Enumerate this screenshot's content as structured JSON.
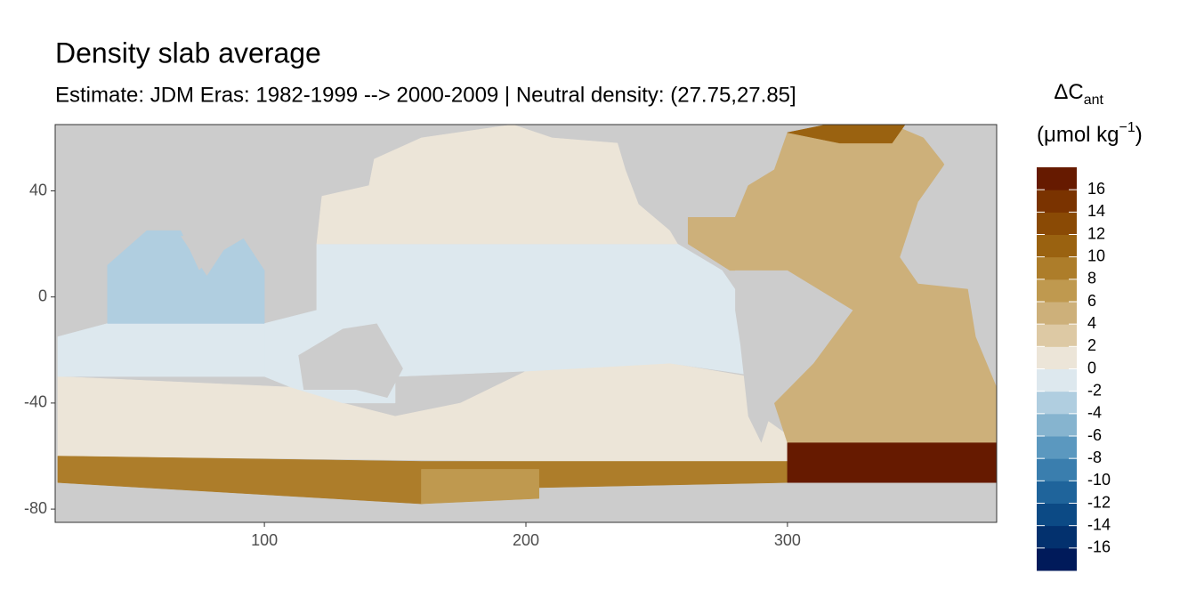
{
  "chart_data": {
    "type": "map",
    "title": "Density slab average",
    "subtitle": "Estimate: JDM Eras: 1982-1999 --> 2000-2009 | Neutral density: (27.75,27.85]",
    "xlim": [
      20,
      380
    ],
    "xticks": [
      100,
      200,
      300
    ],
    "ylim": [
      -85,
      65
    ],
    "yticks": [
      40,
      0,
      -40,
      -80
    ],
    "land_color": "#cccccc",
    "legend": {
      "title": {
        "main": "ΔC",
        "sub": "ant"
      },
      "unit": {
        "open": "(μmol kg",
        "sup": "−1",
        "close": ")"
      },
      "lim": [
        -18,
        18
      ],
      "breaks": [
        -16,
        -14,
        -12,
        -10,
        -8,
        -6,
        -4,
        -2,
        0,
        2,
        4,
        6,
        8,
        10,
        12,
        14,
        16
      ],
      "colors": [
        "#001a5a",
        "#03316e",
        "#0c4a85",
        "#1f649b",
        "#3a7eae",
        "#5b98bf",
        "#86b4cf",
        "#b0cee0",
        "#dde8ee",
        "#ece5d8",
        "#ddc9a4",
        "#cdb07a",
        "#bf994f",
        "#ad7d2a",
        "#9a6210",
        "#8a4a05",
        "#7a3300",
        "#661a00"
      ]
    },
    "regions": [
      {
        "value": 1,
        "lon": [
          21,
          110,
          130,
          150,
          175,
          200,
          255,
          285,
          290,
          300,
          300,
          21
        ],
        "lat": [
          -30,
          -34,
          -40,
          -45,
          -40,
          -28,
          -25,
          -30,
          -45,
          -52,
          -63,
          -60
        ]
      },
      {
        "value": 9,
        "lon": [
          21,
          160,
          300,
          300,
          200,
          160,
          21
        ],
        "lat": [
          -60,
          -62,
          -62,
          -70,
          -72,
          -78,
          -70
        ]
      },
      {
        "value": -1,
        "lon": [
          100,
          100,
          120,
          120,
          258,
          275,
          282,
          285,
          290,
          255,
          200,
          150,
          150,
          130,
          110
        ],
        "lat": [
          -30,
          -10,
          -5,
          20,
          20,
          10,
          0,
          -15,
          -30,
          -25,
          -28,
          -30,
          -40,
          -40,
          -34
        ]
      },
      {
        "value": -1,
        "lon": [
          21,
          21,
          40,
          100,
          100
        ],
        "lat": [
          -30,
          -15,
          -10,
          -10,
          -30
        ]
      },
      {
        "value": -3,
        "lon": [
          40,
          40,
          55,
          68,
          75,
          80,
          92,
          100,
          100
        ],
        "lat": [
          -10,
          12,
          25,
          25,
          10,
          15,
          22,
          10,
          -10
        ]
      },
      {
        "value": 1,
        "lon": [
          120,
          122,
          140,
          142,
          160,
          195,
          210,
          235,
          238,
          243,
          255,
          258
        ],
        "lat": [
          20,
          38,
          42,
          52,
          60,
          65,
          60,
          58,
          48,
          35,
          25,
          20
        ]
      },
      {
        "value": 5,
        "lon": [
          278,
          262,
          262,
          280,
          285,
          295,
          300,
          340,
          352,
          360,
          350,
          343,
          350,
          370,
          380,
          380,
          300,
          295,
          315,
          325,
          305,
          290
        ],
        "lat": [
          10,
          20,
          30,
          30,
          42,
          48,
          62,
          65,
          60,
          50,
          36,
          15,
          5,
          5,
          -20,
          -55,
          -55,
          -40,
          -8,
          -5,
          5,
          10
        ]
      },
      {
        "value": 11,
        "lon": [
          300,
          315,
          345,
          340,
          320
        ],
        "lat": [
          62,
          65,
          65,
          58,
          58
        ]
      },
      {
        "value": 17,
        "lon": [
          300,
          380,
          380,
          300
        ],
        "lat": [
          -55,
          -55,
          -70,
          -70
        ]
      },
      {
        "value": 7,
        "lon": [
          160,
          205,
          205,
          160
        ],
        "lat": [
          -65,
          -65,
          -76,
          -78
        ]
      }
    ]
  }
}
